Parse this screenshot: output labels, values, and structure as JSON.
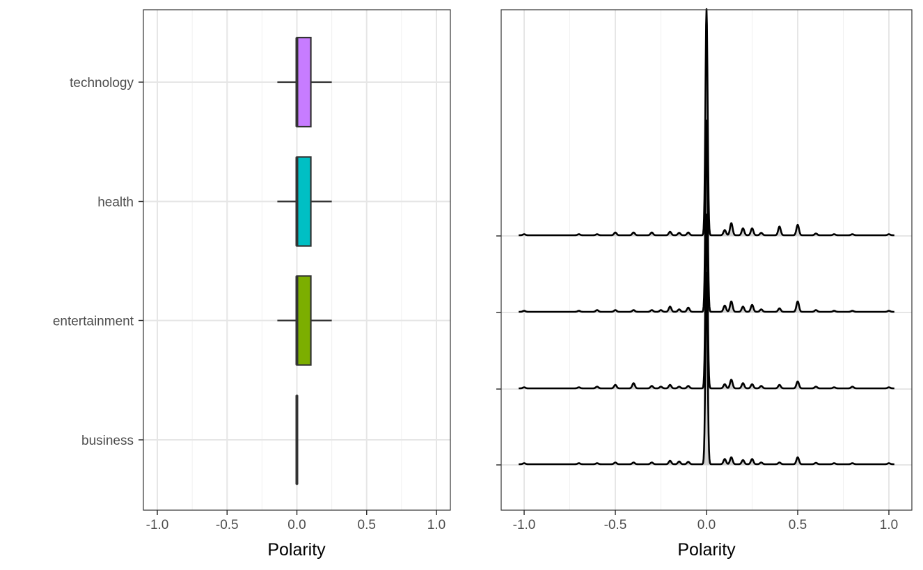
{
  "chart_data": [
    {
      "type": "boxplot",
      "xlabel": "Polarity",
      "ylabel": "",
      "xlim": [
        -1.0,
        1.0
      ],
      "x_ticks": [
        "-1.0",
        "-0.5",
        "0.0",
        "0.5",
        "1.0"
      ],
      "x_tick_values": [
        -1.0,
        -0.5,
        0.0,
        0.5,
        1.0
      ],
      "grid": true,
      "categories": [
        "technology",
        "health",
        "entertainment",
        "business"
      ],
      "boxes": [
        {
          "category": "technology",
          "whisker_low": -0.14,
          "q1": 0.0,
          "median": 0.0,
          "q3": 0.1,
          "whisker_high": 0.25,
          "color": "#C77CFF"
        },
        {
          "category": "health",
          "whisker_low": -0.14,
          "q1": 0.0,
          "median": 0.0,
          "q3": 0.1,
          "whisker_high": 0.25,
          "color": "#00BFC4"
        },
        {
          "category": "entertainment",
          "whisker_low": -0.14,
          "q1": 0.0,
          "median": 0.0,
          "q3": 0.1,
          "whisker_high": 0.25,
          "color": "#7CAE00"
        },
        {
          "category": "business",
          "whisker_low": 0.0,
          "q1": 0.0,
          "median": 0.0,
          "q3": 0.0,
          "whisker_high": 0.0,
          "color": "#F8766D"
        }
      ]
    },
    {
      "type": "area",
      "subtype": "ridgeline-density",
      "xlabel": "Polarity",
      "ylabel": "",
      "xlim": [
        -1.0,
        1.0
      ],
      "x_ticks": [
        "-1.0",
        "-0.5",
        "0.0",
        "0.5",
        "1.0"
      ],
      "x_tick_values": [
        -1.0,
        -0.5,
        0.0,
        0.5,
        1.0
      ],
      "grid": true,
      "fill_color": "#d3d3d3",
      "line_color": "#000000",
      "series": [
        {
          "main_peak": {
            "x": 0.0,
            "height": 6.5
          },
          "peaks": [
            [
              -1.0,
              0.03
            ],
            [
              -0.7,
              0.03
            ],
            [
              -0.6,
              0.03
            ],
            [
              -0.5,
              0.08
            ],
            [
              -0.4,
              0.08
            ],
            [
              -0.3,
              0.08
            ],
            [
              -0.2,
              0.1
            ],
            [
              -0.15,
              0.07
            ],
            [
              -0.1,
              0.08
            ],
            [
              0.1,
              0.15
            ],
            [
              0.136,
              0.35
            ],
            [
              0.2,
              0.2
            ],
            [
              0.25,
              0.2
            ],
            [
              0.3,
              0.07
            ],
            [
              0.4,
              0.25
            ],
            [
              0.5,
              0.3
            ],
            [
              0.6,
              0.05
            ],
            [
              0.7,
              0.03
            ],
            [
              0.8,
              0.03
            ],
            [
              1.0,
              0.03
            ]
          ]
        },
        {
          "main_peak": {
            "x": 0.0,
            "height": 5.5
          },
          "peaks": [
            [
              -1.0,
              0.03
            ],
            [
              -0.7,
              0.03
            ],
            [
              -0.6,
              0.05
            ],
            [
              -0.5,
              0.05
            ],
            [
              -0.4,
              0.05
            ],
            [
              -0.3,
              0.05
            ],
            [
              -0.25,
              0.05
            ],
            [
              -0.2,
              0.15
            ],
            [
              -0.15,
              0.07
            ],
            [
              -0.1,
              0.12
            ],
            [
              0.1,
              0.18
            ],
            [
              0.136,
              0.3
            ],
            [
              0.2,
              0.15
            ],
            [
              0.25,
              0.2
            ],
            [
              0.3,
              0.07
            ],
            [
              0.4,
              0.1
            ],
            [
              0.5,
              0.3
            ],
            [
              0.6,
              0.05
            ],
            [
              0.7,
              0.03
            ],
            [
              0.8,
              0.03
            ],
            [
              1.0,
              0.03
            ]
          ]
        },
        {
          "main_peak": {
            "x": 0.0,
            "height": 5.0
          },
          "peaks": [
            [
              -1.0,
              0.03
            ],
            [
              -0.7,
              0.03
            ],
            [
              -0.6,
              0.05
            ],
            [
              -0.5,
              0.1
            ],
            [
              -0.4,
              0.15
            ],
            [
              -0.3,
              0.07
            ],
            [
              -0.25,
              0.05
            ],
            [
              -0.2,
              0.1
            ],
            [
              -0.15,
              0.05
            ],
            [
              -0.1,
              0.07
            ],
            [
              0.1,
              0.12
            ],
            [
              0.136,
              0.25
            ],
            [
              0.2,
              0.15
            ],
            [
              0.25,
              0.12
            ],
            [
              0.3,
              0.07
            ],
            [
              0.4,
              0.1
            ],
            [
              0.5,
              0.2
            ],
            [
              0.6,
              0.05
            ],
            [
              0.7,
              0.03
            ],
            [
              0.8,
              0.05
            ],
            [
              1.0,
              0.03
            ]
          ]
        },
        {
          "main_peak": {
            "x": 0.0,
            "height": 5.5
          },
          "peaks": [
            [
              -1.0,
              0.03
            ],
            [
              -0.7,
              0.03
            ],
            [
              -0.6,
              0.03
            ],
            [
              -0.5,
              0.05
            ],
            [
              -0.4,
              0.05
            ],
            [
              -0.3,
              0.05
            ],
            [
              -0.2,
              0.1
            ],
            [
              -0.15,
              0.08
            ],
            [
              -0.1,
              0.07
            ],
            [
              0.1,
              0.15
            ],
            [
              0.136,
              0.2
            ],
            [
              0.2,
              0.12
            ],
            [
              0.25,
              0.15
            ],
            [
              0.3,
              0.05
            ],
            [
              0.4,
              0.05
            ],
            [
              0.5,
              0.2
            ],
            [
              0.6,
              0.04
            ],
            [
              0.7,
              0.03
            ],
            [
              0.8,
              0.03
            ],
            [
              1.0,
              0.03
            ]
          ]
        }
      ]
    }
  ]
}
